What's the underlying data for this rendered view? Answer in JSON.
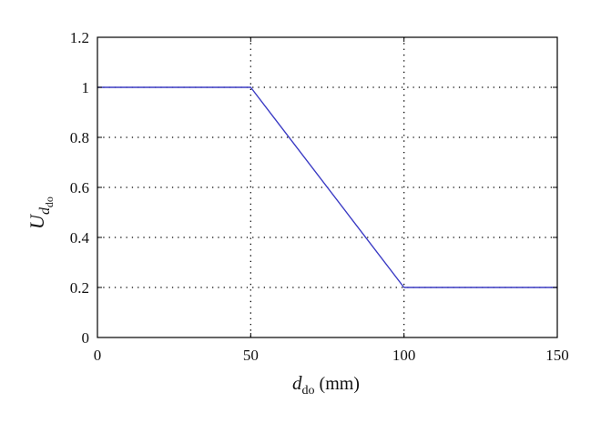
{
  "chart_data": {
    "type": "line",
    "title": "",
    "xlabel": {
      "main": "d",
      "sub": "do",
      "unit": " (mm)"
    },
    "ylabel": {
      "main": "U",
      "sub": "d",
      "subsub": "do"
    },
    "xlim": [
      0,
      150
    ],
    "ylim": [
      0,
      1.2
    ],
    "xticks": [
      0,
      50,
      100,
      150
    ],
    "xtick_labels": [
      "0",
      "50",
      "100",
      "150"
    ],
    "yticks": [
      0,
      0.2,
      0.4,
      0.6,
      0.8,
      1,
      1.2
    ],
    "ytick_labels": [
      "0",
      "0.2",
      "0.4",
      "0.6",
      "0.8",
      "1",
      "1.2"
    ],
    "grid": true,
    "series": [
      {
        "color": "#3b3bc4",
        "x": [
          0,
          50,
          100,
          150
        ],
        "y": [
          1,
          1,
          0.2,
          0.2
        ]
      }
    ]
  }
}
